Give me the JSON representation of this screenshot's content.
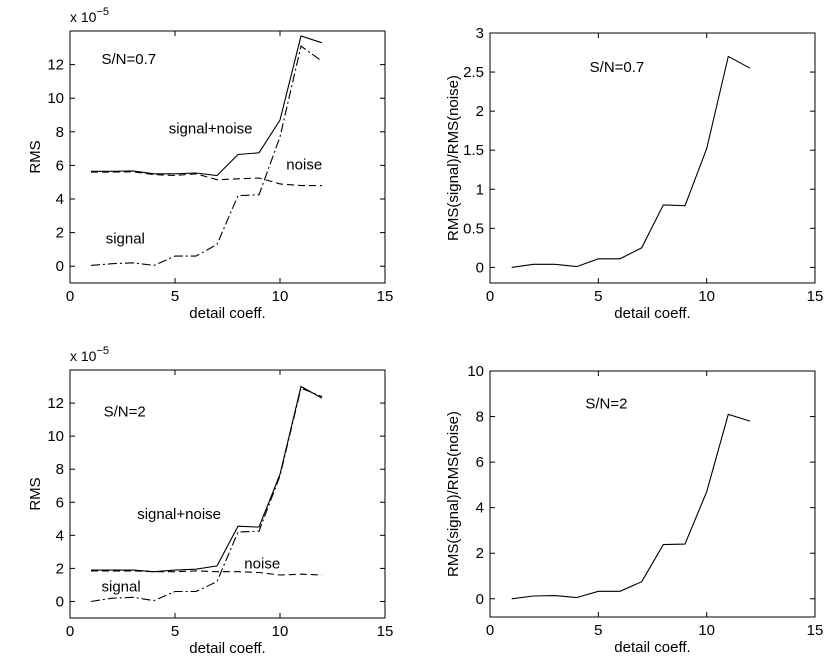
{
  "chart_data": [
    {
      "id": "rms-07",
      "type": "line",
      "title": "",
      "xlabel": "detail coeff.",
      "ylabel": "RMS",
      "xlim": [
        0,
        15
      ],
      "ylim": [
        -1,
        14
      ],
      "xticks": [
        0,
        5,
        10,
        15
      ],
      "yticks": [
        0,
        2,
        4,
        6,
        8,
        10,
        12
      ],
      "exponent_label": "x 10",
      "exponent_power": "−5",
      "grid": false,
      "x": [
        1,
        2,
        3,
        4,
        5,
        6,
        7,
        8,
        9,
        10,
        11,
        12
      ],
      "series": [
        {
          "name": "signal+noise",
          "style": "solid",
          "values": [
            5.65,
            5.65,
            5.67,
            5.5,
            5.5,
            5.55,
            5.4,
            6.65,
            6.75,
            8.7,
            13.7,
            13.3
          ]
        },
        {
          "name": "noise",
          "style": "dashed",
          "values": [
            5.6,
            5.6,
            5.62,
            5.45,
            5.4,
            5.5,
            5.15,
            5.2,
            5.25,
            4.9,
            4.8,
            4.8
          ]
        },
        {
          "name": "signal",
          "style": "dashdot",
          "values": [
            0.05,
            0.15,
            0.2,
            0.05,
            0.6,
            0.6,
            1.3,
            4.2,
            4.25,
            7.7,
            13.1,
            12.2
          ]
        }
      ],
      "annotations": [
        {
          "id": "sn",
          "text": "S/N=0.7",
          "x": 1.5,
          "y": 12.05
        },
        {
          "id": "signal-noise",
          "text": "signal+noise",
          "x": 4.7,
          "y": 7.9
        },
        {
          "id": "noise",
          "text": "noise",
          "x": 10.3,
          "y": 5.75
        },
        {
          "id": "signal",
          "text": "signal",
          "x": 1.7,
          "y": 1.35
        }
      ]
    },
    {
      "id": "ratio-07",
      "type": "line",
      "title": "",
      "xlabel": "detail coeff.",
      "ylabel": "RMS(signal)/RMS(noise)",
      "xlim": [
        0,
        15
      ],
      "ylim": [
        -0.2,
        3
      ],
      "xticks": [
        0,
        5,
        10,
        15
      ],
      "yticks": [
        0,
        0.5,
        1,
        1.5,
        2,
        2.5,
        3
      ],
      "grid": false,
      "x": [
        1,
        2,
        3,
        4,
        5,
        6,
        7,
        8,
        9,
        10,
        11,
        12
      ],
      "series": [
        {
          "name": "ratio",
          "style": "solid",
          "values": [
            0.0,
            0.04,
            0.04,
            0.01,
            0.11,
            0.11,
            0.25,
            0.8,
            0.79,
            1.52,
            2.7,
            2.55
          ]
        }
      ],
      "annotations": [
        {
          "id": "sn",
          "text": "S/N=0.7",
          "x": 4.6,
          "y": 2.5
        }
      ]
    },
    {
      "id": "rms-2",
      "type": "line",
      "title": "",
      "xlabel": "detail coeff.",
      "ylabel": "RMS",
      "xlim": [
        0,
        15
      ],
      "ylim": [
        -1,
        14
      ],
      "xticks": [
        0,
        5,
        10,
        15
      ],
      "yticks": [
        0,
        2,
        4,
        6,
        8,
        10,
        12
      ],
      "exponent_label": "x 10",
      "exponent_power": "−5",
      "grid": false,
      "x": [
        1,
        2,
        3,
        4,
        5,
        6,
        7,
        8,
        9,
        10,
        11,
        12
      ],
      "series": [
        {
          "name": "signal+noise",
          "style": "solid",
          "values": [
            1.9,
            1.9,
            1.9,
            1.8,
            1.9,
            1.95,
            2.15,
            4.55,
            4.5,
            7.7,
            13.0,
            12.3
          ]
        },
        {
          "name": "noise",
          "style": "dashed",
          "values": [
            1.85,
            1.85,
            1.85,
            1.8,
            1.8,
            1.85,
            1.8,
            1.8,
            1.75,
            1.6,
            1.65,
            1.6
          ]
        },
        {
          "name": "signal",
          "style": "dashdot",
          "values": [
            0.0,
            0.2,
            0.25,
            0.05,
            0.6,
            0.6,
            1.2,
            4.2,
            4.25,
            7.6,
            12.9,
            12.4
          ]
        }
      ],
      "annotations": [
        {
          "id": "sn",
          "text": "S/N=2",
          "x": 1.6,
          "y": 11.2
        },
        {
          "id": "signal-noise",
          "text": "signal+noise",
          "x": 3.2,
          "y": 5.0
        },
        {
          "id": "noise",
          "text": "noise",
          "x": 8.3,
          "y": 2.0
        },
        {
          "id": "signal",
          "text": "signal",
          "x": 1.5,
          "y": 0.6
        }
      ]
    },
    {
      "id": "ratio-2",
      "type": "line",
      "title": "",
      "xlabel": "detail coeff.",
      "ylabel": "RMS(signal)/RMS(noise)",
      "xlim": [
        0,
        15
      ],
      "ylim": [
        -0.8,
        10
      ],
      "xticks": [
        0,
        5,
        10,
        15
      ],
      "yticks": [
        0,
        2,
        4,
        6,
        8,
        10
      ],
      "grid": false,
      "x": [
        1,
        2,
        3,
        4,
        5,
        6,
        7,
        8,
        9,
        10,
        11,
        12
      ],
      "series": [
        {
          "name": "ratio",
          "style": "solid",
          "values": [
            0.0,
            0.12,
            0.14,
            0.05,
            0.33,
            0.33,
            0.75,
            2.38,
            2.4,
            4.7,
            8.1,
            7.8
          ]
        }
      ],
      "annotations": [
        {
          "id": "sn",
          "text": "S/N=2",
          "x": 4.4,
          "y": 8.35
        }
      ]
    }
  ]
}
